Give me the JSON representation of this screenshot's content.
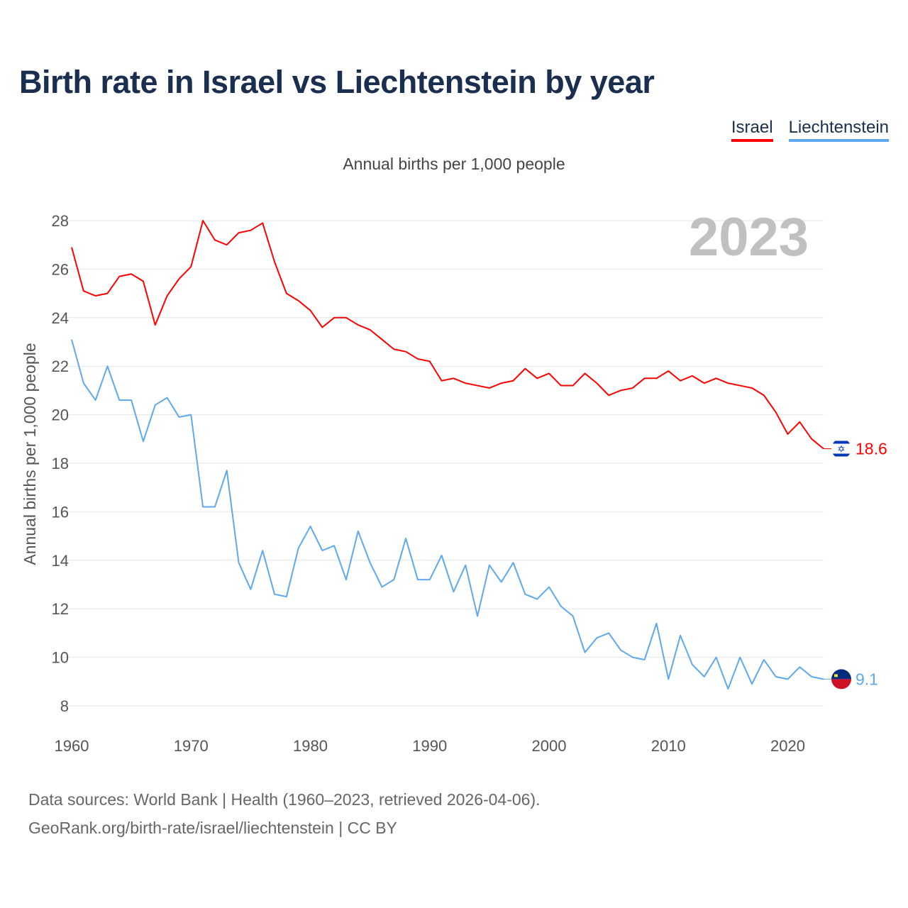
{
  "title": "Birth rate in Israel vs Liechtenstein by year",
  "legend": {
    "israel": "Israel",
    "liechtenstein": "Liechtenstein"
  },
  "subtitle": "Annual births per 1,000 people",
  "year_watermark": "2023",
  "source_line1": "Data sources: World Bank | Health (1960–2023, retrieved 2026-04-06).",
  "source_line2": "GeoRank.org/birth-rate/israel/liechtenstein | CC BY",
  "colors": {
    "israel": "#ff0000",
    "liechtenstein": "#5ea8f0",
    "title": "#1a2e4f"
  },
  "chart_data": {
    "type": "line",
    "title": "Birth rate in Israel vs Liechtenstein by year",
    "xlabel": "",
    "ylabel": "Annual births per 1,000 people",
    "xlim": [
      1960,
      2023
    ],
    "ylim": [
      7,
      29
    ],
    "yticks": [
      8,
      10,
      12,
      14,
      16,
      18,
      20,
      22,
      24,
      26,
      28
    ],
    "xticks": [
      1960,
      1970,
      1980,
      1990,
      2000,
      2010,
      2020
    ],
    "grid": true,
    "legend_position": "top-right",
    "x_start": 1960,
    "series": [
      {
        "name": "Israel",
        "end_label": "18.6",
        "values": [
          26.9,
          25.1,
          24.9,
          25.0,
          25.7,
          25.8,
          25.5,
          23.7,
          24.9,
          25.6,
          26.1,
          28.0,
          27.2,
          27.0,
          27.5,
          27.6,
          27.9,
          26.3,
          25.0,
          24.7,
          24.3,
          23.6,
          24.0,
          24.0,
          23.7,
          23.5,
          23.1,
          22.7,
          22.6,
          22.3,
          22.2,
          21.4,
          21.5,
          21.3,
          21.2,
          21.1,
          21.3,
          21.4,
          21.9,
          21.5,
          21.7,
          21.2,
          21.2,
          21.7,
          21.3,
          20.8,
          21.0,
          21.1,
          21.5,
          21.5,
          21.8,
          21.4,
          21.6,
          21.3,
          21.5,
          21.3,
          21.2,
          21.1,
          20.8,
          20.1,
          19.2,
          19.7,
          19.0,
          18.6
        ]
      },
      {
        "name": "Liechtenstein",
        "end_label": "9.1",
        "values": [
          23.1,
          21.3,
          20.6,
          22.0,
          20.6,
          20.6,
          18.9,
          20.4,
          20.7,
          19.9,
          20.0,
          16.2,
          16.2,
          17.7,
          13.9,
          12.8,
          14.4,
          12.6,
          12.5,
          14.5,
          15.4,
          14.4,
          14.6,
          13.2,
          15.2,
          13.9,
          12.9,
          13.2,
          14.9,
          13.2,
          13.2,
          14.2,
          12.7,
          13.8,
          11.7,
          13.8,
          13.1,
          13.9,
          12.6,
          12.4,
          12.9,
          12.1,
          11.7,
          10.2,
          10.8,
          11.0,
          10.3,
          10.0,
          9.9,
          11.4,
          9.1,
          10.9,
          9.7,
          9.2,
          10.0,
          8.7,
          10.0,
          8.9,
          9.9,
          9.2,
          9.1,
          9.6,
          9.2,
          9.1
        ]
      }
    ]
  }
}
